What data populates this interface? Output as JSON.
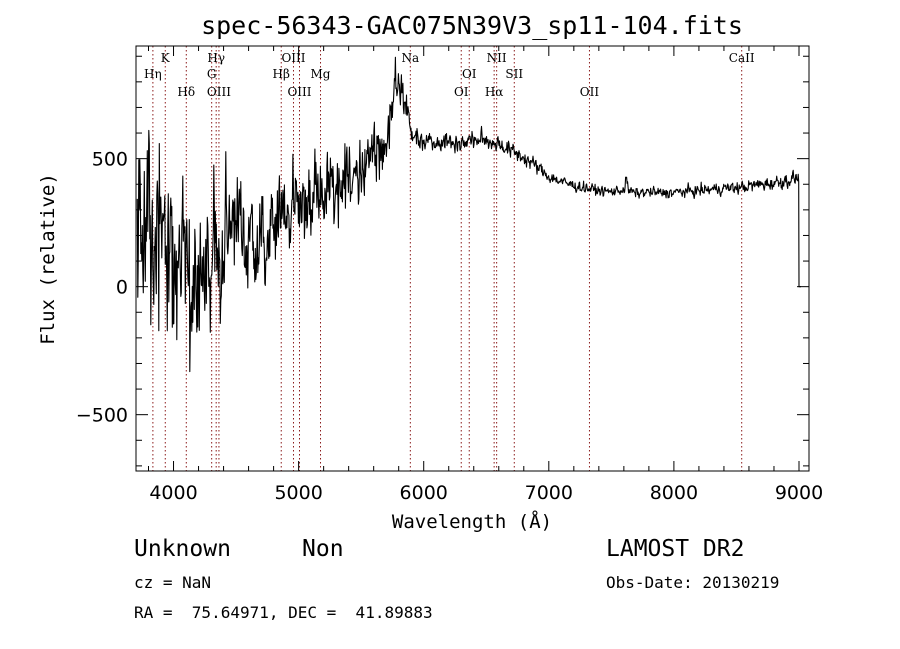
{
  "chart_data": {
    "type": "line",
    "title": "spec-56343-GAC075N39V3_sp11-104.fits",
    "xlabel": "Wavelength (Å)",
    "ylabel": "Flux (relative)",
    "xlim": [
      3700,
      9080
    ],
    "ylim": [
      -720,
      940
    ],
    "xticks": [
      4000,
      5000,
      6000,
      7000,
      8000,
      9000
    ],
    "yticks": [
      -500,
      0,
      500
    ],
    "grid": false,
    "line_color": "#000000",
    "marker_color": "#8b1a1a",
    "lines": [
      {
        "name": "Hη",
        "wave": 3835,
        "row": 2
      },
      {
        "name": "K",
        "wave": 3934,
        "row": 1
      },
      {
        "name": "Hδ",
        "wave": 4102,
        "row": 3
      },
      {
        "name": "Hγ",
        "wave": 4341,
        "row": 1
      },
      {
        "name": "G",
        "wave": 4305,
        "row": 2
      },
      {
        "name": "OIII",
        "wave": 4363,
        "row": 3
      },
      {
        "name": "OIII",
        "wave": 4959,
        "row": 1
      },
      {
        "name": "Hβ",
        "wave": 4861,
        "row": 2
      },
      {
        "name": "Mg",
        "wave": 5175,
        "row": 2
      },
      {
        "name": "OIII",
        "wave": 5007,
        "row": 3
      },
      {
        "name": "Na",
        "wave": 5893,
        "row": 1
      },
      {
        "name": "NII",
        "wave": 6583,
        "row": 1
      },
      {
        "name": "OI",
        "wave": 6364,
        "row": 2
      },
      {
        "name": "SII",
        "wave": 6724,
        "row": 2
      },
      {
        "name": "OI",
        "wave": 6300,
        "row": 3
      },
      {
        "name": "Hα",
        "wave": 6563,
        "row": 3
      },
      {
        "name": "OII",
        "wave": 7325,
        "row": 3
      },
      {
        "name": "CaII",
        "wave": 8542,
        "row": 1
      }
    ],
    "continuum": [
      [
        3700,
        210
      ],
      [
        3800,
        170
      ],
      [
        3900,
        140
      ],
      [
        4000,
        120
      ],
      [
        4100,
        105
      ],
      [
        4200,
        100
      ],
      [
        4300,
        130
      ],
      [
        4400,
        150
      ],
      [
        4500,
        170
      ],
      [
        4600,
        195
      ],
      [
        4700,
        215
      ],
      [
        4800,
        245
      ],
      [
        4900,
        275
      ],
      [
        5000,
        305
      ],
      [
        5100,
        330
      ],
      [
        5200,
        360
      ],
      [
        5300,
        400
      ],
      [
        5400,
        440
      ],
      [
        5500,
        480
      ],
      [
        5600,
        530
      ],
      [
        5700,
        570
      ],
      [
        5800,
        690
      ],
      [
        5850,
        650
      ],
      [
        5900,
        590
      ],
      [
        6000,
        575
      ],
      [
        6100,
        570
      ],
      [
        6200,
        565
      ],
      [
        6300,
        560
      ],
      [
        6400,
        575
      ],
      [
        6500,
        570
      ],
      [
        6600,
        560
      ],
      [
        6700,
        530
      ],
      [
        6800,
        505
      ],
      [
        6900,
        470
      ],
      [
        7000,
        430
      ],
      [
        7100,
        410
      ],
      [
        7200,
        395
      ],
      [
        7300,
        385
      ],
      [
        7400,
        375
      ],
      [
        7500,
        370
      ],
      [
        7600,
        380
      ],
      [
        7700,
        365
      ],
      [
        7800,
        370
      ],
      [
        7900,
        365
      ],
      [
        8000,
        368
      ],
      [
        8100,
        372
      ],
      [
        8200,
        375
      ],
      [
        8300,
        380
      ],
      [
        8400,
        385
      ],
      [
        8500,
        385
      ],
      [
        8600,
        392
      ],
      [
        8700,
        400
      ],
      [
        8800,
        405
      ],
      [
        8900,
        415
      ],
      [
        8980,
        425
      ]
    ],
    "noise": [
      [
        3700,
        260
      ],
      [
        4000,
        240
      ],
      [
        4300,
        170
      ],
      [
        4600,
        130
      ],
      [
        4900,
        115
      ],
      [
        5200,
        105
      ],
      [
        5500,
        85
      ],
      [
        5800,
        70
      ],
      [
        5900,
        30
      ],
      [
        6100,
        22
      ],
      [
        6500,
        22
      ],
      [
        6800,
        20
      ],
      [
        7000,
        15
      ],
      [
        7500,
        12
      ],
      [
        8000,
        13
      ],
      [
        8500,
        15
      ],
      [
        9000,
        18
      ]
    ],
    "features": [
      {
        "wave": 5770,
        "height": 170,
        "width": 18
      },
      {
        "wave": 5830,
        "height": 120,
        "width": 40
      },
      {
        "wave": 7620,
        "height": 45,
        "width": 10
      }
    ],
    "end": {
      "wave": 9000,
      "value": 0
    },
    "step": 4
  },
  "info": {
    "object_class": "Unknown",
    "subclass": "Non",
    "redshift": "cz = NaN",
    "coords": "RA =  75.64971, DEC =  41.89883",
    "survey": "LAMOST DR2",
    "obs_date": "Obs-Date: 20130219"
  }
}
